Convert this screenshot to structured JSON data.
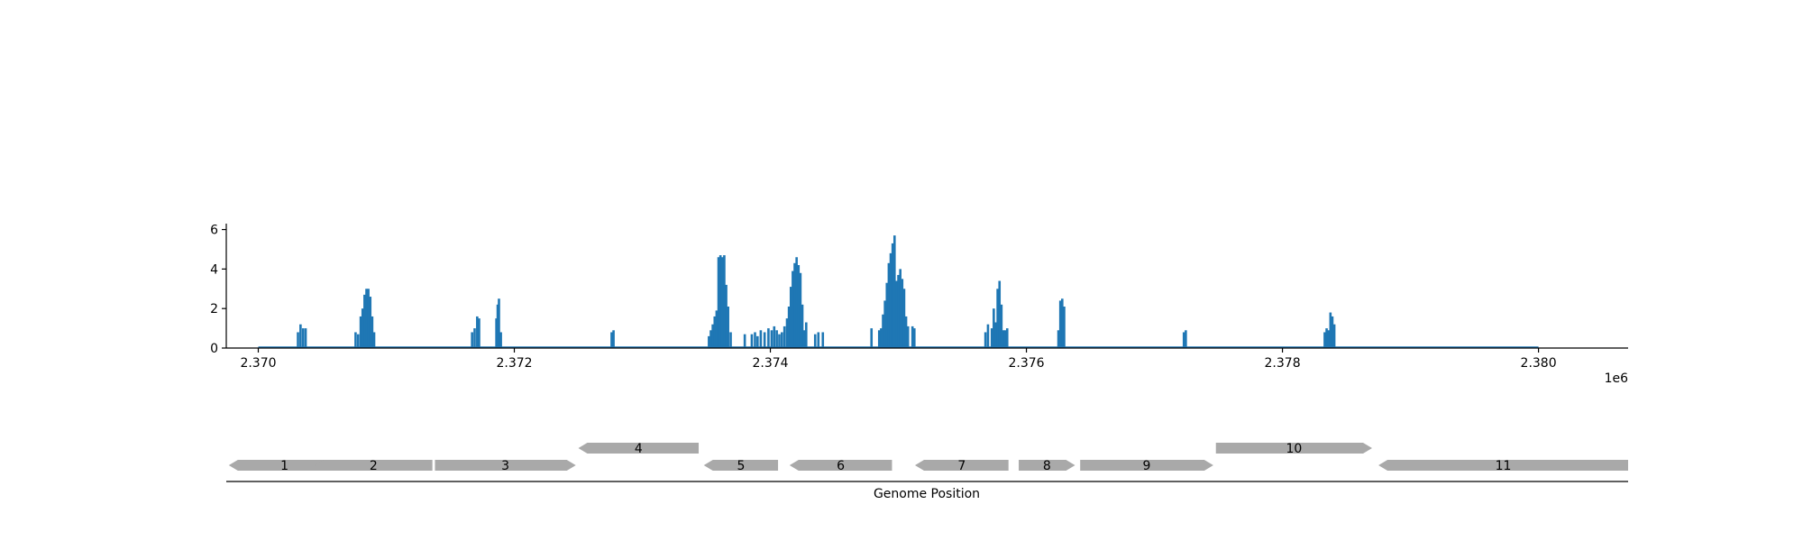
{
  "chart_data": {
    "type": "bar",
    "colors": {
      "bars": "#1f77b4",
      "genes": "#a9a9a9",
      "axis": "#000000"
    },
    "coverage": {
      "xlim": [
        2369750,
        2380700
      ],
      "ylim": [
        0,
        6.3
      ],
      "x_ticks": [
        2370000,
        2372000,
        2374000,
        2376000,
        2378000,
        2380000
      ],
      "x_tick_labels": [
        "2.370",
        "2.372",
        "2.374",
        "2.376",
        "2.378",
        "2.380"
      ],
      "y_ticks": [
        0,
        2,
        4,
        6
      ],
      "y_tick_labels": [
        "0",
        "2",
        "4",
        "6"
      ],
      "offset_label": "1e6",
      "baseline_range": [
        2370000,
        2380000
      ],
      "points": [
        [
          2370310,
          0.8
        ],
        [
          2370330,
          1.2
        ],
        [
          2370350,
          1.0
        ],
        [
          2370370,
          1.0
        ],
        [
          2370760,
          0.8
        ],
        [
          2370780,
          0.7
        ],
        [
          2370800,
          1.6
        ],
        [
          2370815,
          2.0
        ],
        [
          2370830,
          2.7
        ],
        [
          2370845,
          3.0
        ],
        [
          2370860,
          3.0
        ],
        [
          2370875,
          2.6
        ],
        [
          2370890,
          1.6
        ],
        [
          2370905,
          0.8
        ],
        [
          2371670,
          0.8
        ],
        [
          2371690,
          1.0
        ],
        [
          2371710,
          1.6
        ],
        [
          2371725,
          1.5
        ],
        [
          2371860,
          1.5
        ],
        [
          2371870,
          2.2
        ],
        [
          2371880,
          2.5
        ],
        [
          2371895,
          0.8
        ],
        [
          2372760,
          0.8
        ],
        [
          2372775,
          0.9
        ],
        [
          2373520,
          0.6
        ],
        [
          2373535,
          0.9
        ],
        [
          2373550,
          1.2
        ],
        [
          2373565,
          1.6
        ],
        [
          2373580,
          1.9
        ],
        [
          2373595,
          4.6
        ],
        [
          2373610,
          4.7
        ],
        [
          2373625,
          4.6
        ],
        [
          2373640,
          4.7
        ],
        [
          2373655,
          3.2
        ],
        [
          2373670,
          2.1
        ],
        [
          2373690,
          0.8
        ],
        [
          2373800,
          0.7
        ],
        [
          2373855,
          0.7
        ],
        [
          2373880,
          0.8
        ],
        [
          2373900,
          0.6
        ],
        [
          2373925,
          0.9
        ],
        [
          2373955,
          0.8
        ],
        [
          2373985,
          1.0
        ],
        [
          2374010,
          0.9
        ],
        [
          2374030,
          1.1
        ],
        [
          2374050,
          0.9
        ],
        [
          2374070,
          0.7
        ],
        [
          2374090,
          0.8
        ],
        [
          2374110,
          1.1
        ],
        [
          2374130,
          1.5
        ],
        [
          2374145,
          2.1
        ],
        [
          2374160,
          3.1
        ],
        [
          2374175,
          3.9
        ],
        [
          2374190,
          4.3
        ],
        [
          2374205,
          4.6
        ],
        [
          2374220,
          4.2
        ],
        [
          2374235,
          3.8
        ],
        [
          2374250,
          2.2
        ],
        [
          2374265,
          0.9
        ],
        [
          2374280,
          1.3
        ],
        [
          2374350,
          0.7
        ],
        [
          2374375,
          0.8
        ],
        [
          2374410,
          0.8
        ],
        [
          2374790,
          1.0
        ],
        [
          2374850,
          0.9
        ],
        [
          2374865,
          1.0
        ],
        [
          2374880,
          1.7
        ],
        [
          2374895,
          2.4
        ],
        [
          2374910,
          3.3
        ],
        [
          2374925,
          4.3
        ],
        [
          2374940,
          4.8
        ],
        [
          2374955,
          5.3
        ],
        [
          2374970,
          5.7
        ],
        [
          2374985,
          3.4
        ],
        [
          2375000,
          3.7
        ],
        [
          2375015,
          4.0
        ],
        [
          2375030,
          3.5
        ],
        [
          2375045,
          3.0
        ],
        [
          2375060,
          1.6
        ],
        [
          2375075,
          1.1
        ],
        [
          2375110,
          1.1
        ],
        [
          2375125,
          1.0
        ],
        [
          2375680,
          0.8
        ],
        [
          2375700,
          1.2
        ],
        [
          2375730,
          1.0
        ],
        [
          2375745,
          2.0
        ],
        [
          2375760,
          1.3
        ],
        [
          2375775,
          3.0
        ],
        [
          2375790,
          3.4
        ],
        [
          2375805,
          2.2
        ],
        [
          2375820,
          0.9
        ],
        [
          2375835,
          0.9
        ],
        [
          2375850,
          1.0
        ],
        [
          2376250,
          0.9
        ],
        [
          2376265,
          2.4
        ],
        [
          2376280,
          2.5
        ],
        [
          2376295,
          2.1
        ],
        [
          2377230,
          0.8
        ],
        [
          2377245,
          0.9
        ],
        [
          2378330,
          0.8
        ],
        [
          2378345,
          1.0
        ],
        [
          2378360,
          0.9
        ],
        [
          2378375,
          1.8
        ],
        [
          2378390,
          1.6
        ],
        [
          2378405,
          1.2
        ]
      ]
    },
    "genes": {
      "xlabel": "Genome Position",
      "items": [
        {
          "label": "1",
          "start": 2369770,
          "end": 2370640,
          "strand": "-",
          "row": 0
        },
        {
          "label": "2",
          "start": 2370440,
          "end": 2371360,
          "strand": "-",
          "row": 0
        },
        {
          "label": "3",
          "start": 2371380,
          "end": 2372480,
          "strand": "+",
          "row": 0
        },
        {
          "label": "4",
          "start": 2372500,
          "end": 2373440,
          "strand": "-",
          "row": 1
        },
        {
          "label": "5",
          "start": 2373480,
          "end": 2374060,
          "strand": "-",
          "row": 0
        },
        {
          "label": "6",
          "start": 2374150,
          "end": 2374950,
          "strand": "-",
          "row": 0
        },
        {
          "label": "7",
          "start": 2375130,
          "end": 2375860,
          "strand": "-",
          "row": 0
        },
        {
          "label": "8",
          "start": 2375940,
          "end": 2376380,
          "strand": "+",
          "row": 0
        },
        {
          "label": "9",
          "start": 2376420,
          "end": 2377460,
          "strand": "+",
          "row": 0
        },
        {
          "label": "10",
          "start": 2377480,
          "end": 2378700,
          "strand": "+",
          "row": 1
        },
        {
          "label": "11",
          "start": 2378750,
          "end": 2380700,
          "strand": "-",
          "row": 0
        }
      ]
    }
  }
}
